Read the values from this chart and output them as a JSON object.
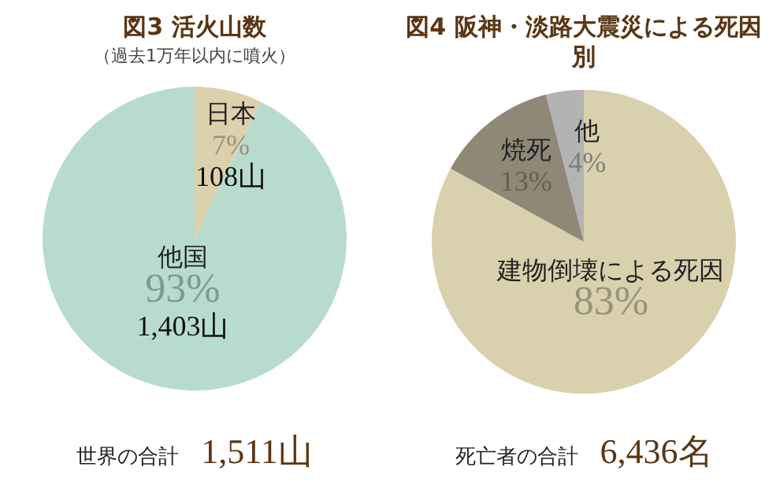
{
  "chart_data": [
    {
      "type": "pie",
      "title": "図3 活火山数",
      "subtitle": "（過去1万年以内に噴火）",
      "categories": [
        "日本",
        "他国"
      ],
      "values": [
        108,
        1403
      ],
      "colors": [
        "#ddd0ac",
        "#b7dccd"
      ],
      "value_labels": [
        "7%\n108山",
        "93%\n1,403山"
      ],
      "annotations": [
        "世界の合計",
        "1,511山"
      ]
    },
    {
      "type": "pie",
      "title": "図4 阪神・淡路大震災による死因別",
      "categories": [
        "建物倒壊による死因",
        "焼死",
        "他"
      ],
      "values": [
        83,
        13,
        4
      ],
      "colors": [
        "#d9d0ae",
        "#8f8876",
        "#b3b3b3"
      ],
      "value_labels": [
        "83%",
        "13%",
        "4%"
      ],
      "annotations": [
        "死亡者の合計",
        "6,436名"
      ]
    }
  ]
}
